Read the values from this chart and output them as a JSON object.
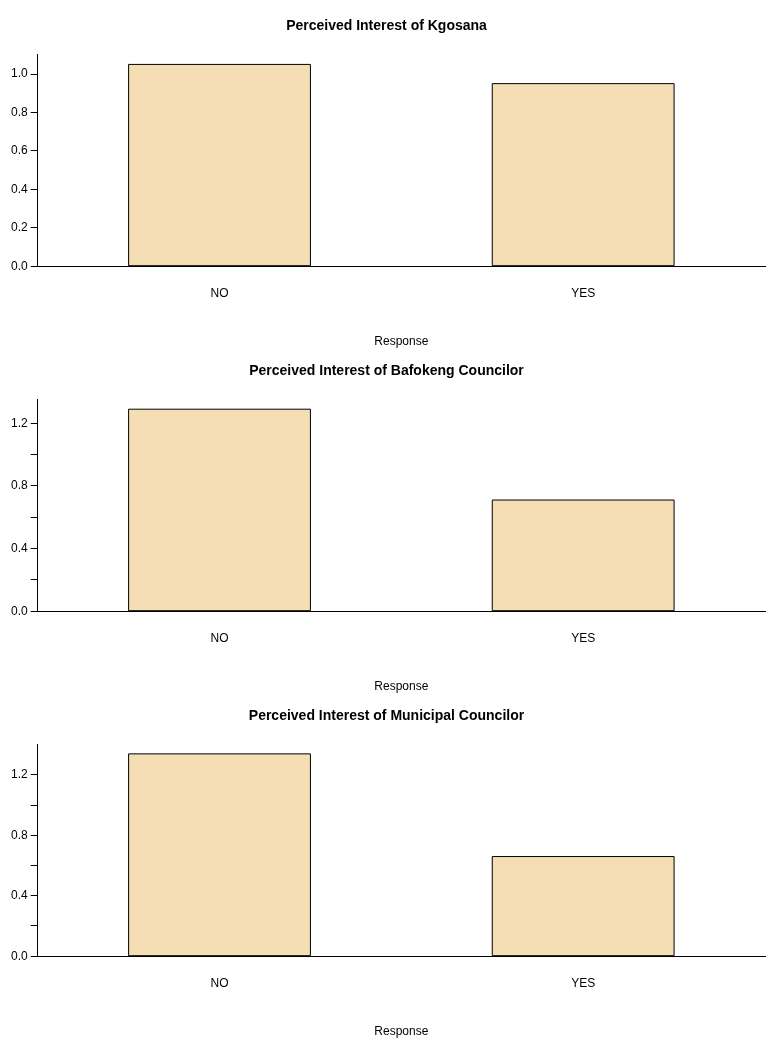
{
  "chart_data": [
    {
      "type": "bar",
      "title": "Perceived Interest of Kgosana",
      "xlabel": "Response",
      "categories": [
        "NO",
        "YES"
      ],
      "values": [
        1.05,
        0.95
      ],
      "color": "#f5deb3",
      "ylim": [
        0,
        1.1
      ],
      "yticks": [
        {
          "value": 0,
          "label": "0.0"
        },
        {
          "value": 0.2,
          "label": "0.2"
        },
        {
          "value": 0.4,
          "label": "0.4"
        },
        {
          "value": 0.6,
          "label": "0.6"
        },
        {
          "value": 0.8,
          "label": "0.8"
        },
        {
          "value": 1,
          "label": "1.0"
        }
      ],
      "grid": false
    },
    {
      "type": "bar",
      "title": "Perceived Interest of Bafokeng Councilor",
      "xlabel": "Response",
      "categories": [
        "NO",
        "YES"
      ],
      "values": [
        1.29,
        0.71
      ],
      "color": "#f5deb3",
      "ylim": [
        0,
        1.35
      ],
      "yticks": [
        {
          "value": 0,
          "label": "0.0"
        },
        {
          "value": 0.2,
          "label": null
        },
        {
          "value": 0.4,
          "label": "0.4"
        },
        {
          "value": 0.6,
          "label": null
        },
        {
          "value": 0.8,
          "label": "0.8"
        },
        {
          "value": 1,
          "label": null
        },
        {
          "value": 1.2,
          "label": "1.2"
        }
      ],
      "grid": false
    },
    {
      "type": "bar",
      "title": "Perceived Interest of Municipal Councilor",
      "xlabel": "Response",
      "categories": [
        "NO",
        "YES"
      ],
      "values": [
        1.34,
        0.66
      ],
      "color": "#f5deb3",
      "ylim": [
        0,
        1.4
      ],
      "yticks": [
        {
          "value": 0,
          "label": "0.0"
        },
        {
          "value": 0.2,
          "label": null
        },
        {
          "value": 0.4,
          "label": "0.4"
        },
        {
          "value": 0.6,
          "label": null
        },
        {
          "value": 0.8,
          "label": "0.8"
        },
        {
          "value": 1,
          "label": null
        },
        {
          "value": 1.2,
          "label": "1.2"
        }
      ],
      "grid": false
    }
  ]
}
